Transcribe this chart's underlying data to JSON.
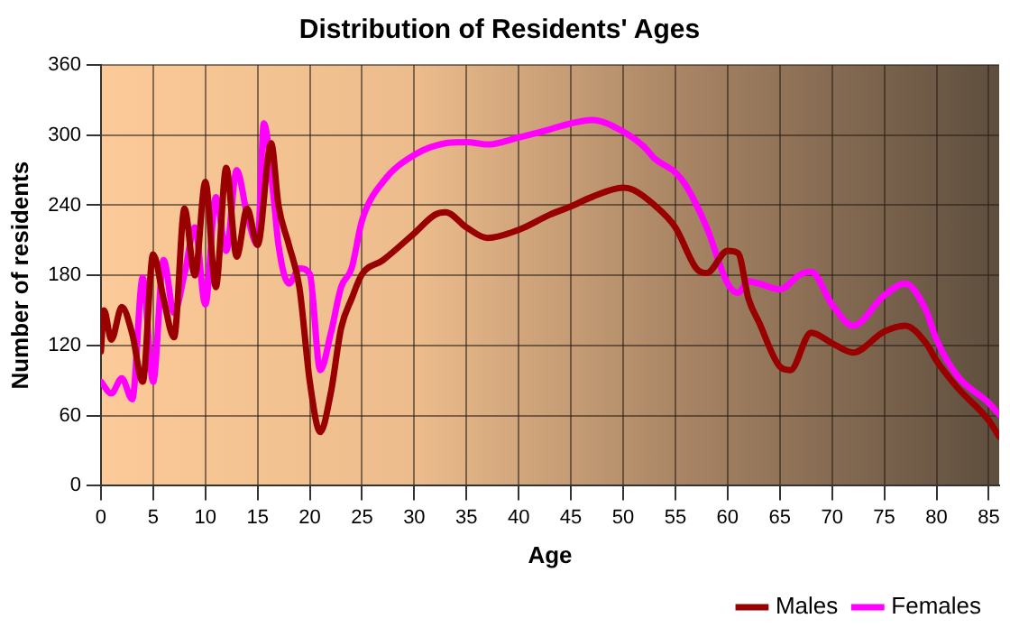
{
  "chart_data": {
    "type": "line",
    "title": "Distribution of Residents' Ages",
    "xlabel": "Age",
    "ylabel": "Number of residents",
    "xlim": [
      0,
      86
    ],
    "xticks": [
      0,
      5,
      10,
      15,
      20,
      25,
      30,
      35,
      40,
      45,
      50,
      55,
      60,
      65,
      70,
      75,
      80,
      85
    ],
    "ylim": [
      0,
      360
    ],
    "yticks": [
      0,
      60,
      120,
      180,
      240,
      300,
      360
    ],
    "grid": true,
    "legend": "bottom",
    "marker": "none",
    "line_style": "solid",
    "series": [
      {
        "name": "Males",
        "color": "#990000",
        "x": [
          0,
          0.3,
          1,
          2,
          3,
          4,
          5,
          6,
          7,
          8,
          9,
          10,
          11,
          12,
          13,
          14,
          15,
          16.3,
          17,
          18,
          19,
          20,
          21,
          22,
          23,
          24,
          25,
          27,
          30,
          32,
          33,
          35,
          37,
          40,
          43,
          45,
          47,
          50,
          51,
          53,
          55,
          57,
          58,
          60,
          61,
          62,
          63,
          65,
          66,
          68,
          70,
          72,
          75,
          77,
          79,
          80,
          82,
          85,
          86
        ],
        "values": [
          115,
          150,
          125,
          153,
          130,
          89,
          198,
          160,
          127,
          237,
          180,
          260,
          170,
          272,
          196,
          237,
          206,
          293,
          240,
          206,
          170,
          89,
          46,
          79,
          135,
          160,
          181,
          193,
          216,
          232,
          234,
          221,
          212,
          219,
          232,
          239,
          247,
          255,
          253,
          240,
          221,
          186,
          182,
          201,
          199,
          160,
          140,
          102,
          99,
          131,
          122,
          114,
          132,
          137,
          122,
          107,
          84,
          56,
          42
        ]
      },
      {
        "name": "Females",
        "color": "#ff00ff",
        "x": [
          0,
          1,
          2,
          3,
          4,
          5,
          6,
          7,
          8,
          9,
          10,
          11,
          12,
          13,
          14,
          15,
          15.6,
          16.5,
          17,
          18,
          19,
          20,
          21,
          22,
          23,
          24,
          25,
          27,
          30,
          33,
          35,
          37,
          40,
          43,
          45,
          47,
          50,
          52,
          53,
          55,
          56,
          58,
          60,
          61,
          62,
          63,
          65,
          67,
          68,
          70,
          72,
          75,
          77,
          79,
          80,
          82,
          85,
          86
        ],
        "values": [
          89,
          79,
          92,
          74,
          178,
          89,
          193,
          148,
          181,
          221,
          155,
          247,
          201,
          270,
          232,
          206,
          310,
          250,
          206,
          173,
          186,
          181,
          99,
          130,
          170,
          186,
          227,
          260,
          283,
          293,
          294,
          292,
          298,
          305,
          310,
          313,
          303,
          290,
          280,
          268,
          257,
          221,
          173,
          165,
          175,
          173,
          168,
          181,
          183,
          155,
          137,
          163,
          173,
          150,
          125,
          94,
          71,
          61
        ]
      }
    ]
  }
}
